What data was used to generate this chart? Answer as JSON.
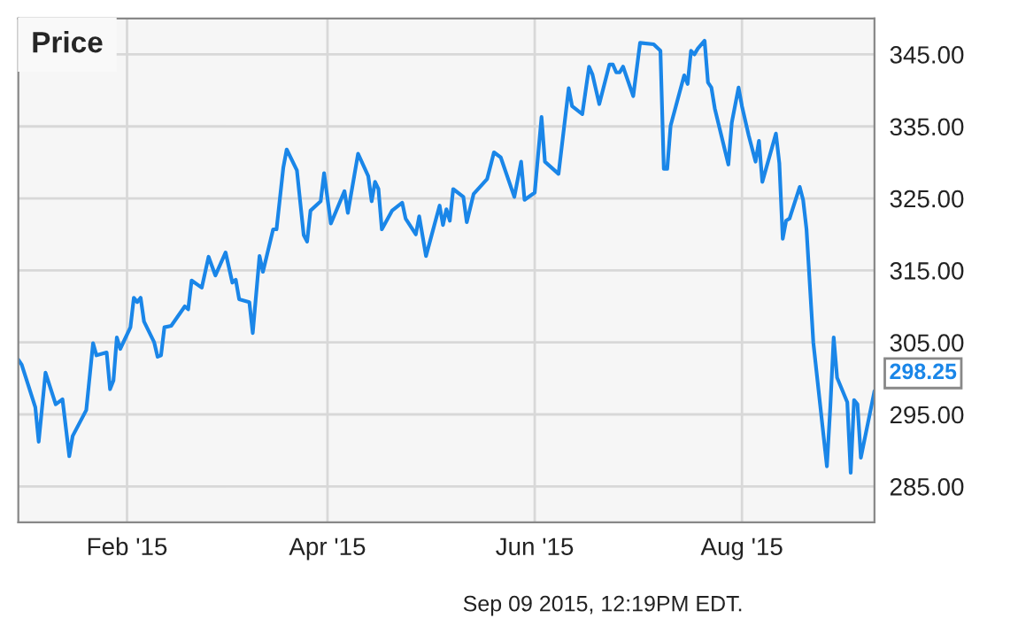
{
  "chart_data": {
    "type": "line",
    "title": "Price",
    "color": "#1a86e8",
    "grid": true,
    "marker": "none",
    "line_style": "solid",
    "x": [
      "2014-12-31",
      "2015-01-01",
      "2015-01-05",
      "2015-01-06",
      "2015-01-08",
      "2015-01-11",
      "2015-01-13",
      "2015-01-15",
      "2015-01-16",
      "2015-01-20",
      "2015-01-22",
      "2015-01-23",
      "2015-01-26",
      "2015-01-27",
      "2015-01-28",
      "2015-01-29",
      "2015-01-30",
      "2015-02-02",
      "2015-02-03",
      "2015-02-04",
      "2015-02-05",
      "2015-02-06",
      "2015-02-09",
      "2015-02-10",
      "2015-02-11",
      "2015-02-12",
      "2015-02-14",
      "2015-02-18",
      "2015-02-19",
      "2015-02-20",
      "2015-02-23",
      "2015-02-25",
      "2015-02-27",
      "2015-03-02",
      "2015-03-04",
      "2015-03-05",
      "2015-03-06",
      "2015-03-09",
      "2015-03-10",
      "2015-03-12",
      "2015-03-13",
      "2015-03-16",
      "2015-03-17",
      "2015-03-19",
      "2015-03-20",
      "2015-03-23",
      "2015-03-25",
      "2015-03-26",
      "2015-03-27",
      "2015-03-30",
      "2015-03-31",
      "2015-04-02",
      "2015-04-06",
      "2015-04-07",
      "2015-04-10",
      "2015-04-13",
      "2015-04-14",
      "2015-04-15",
      "2015-04-16",
      "2015-04-17",
      "2015-04-20",
      "2015-04-23",
      "2015-04-24",
      "2015-04-27",
      "2015-04-28",
      "2015-04-30",
      "2015-05-02",
      "2015-05-04",
      "2015-05-05",
      "2015-05-06",
      "2015-05-07",
      "2015-05-08",
      "2015-05-11",
      "2015-05-12",
      "2015-05-14",
      "2015-05-18",
      "2015-05-20",
      "2015-05-22",
      "2015-05-26",
      "2015-05-28",
      "2015-05-29",
      "2015-06-01",
      "2015-06-03",
      "2015-06-04",
      "2015-06-08",
      "2015-06-11",
      "2015-06-12",
      "2015-06-15",
      "2015-06-17",
      "2015-06-18",
      "2015-06-20",
      "2015-06-23",
      "2015-06-24",
      "2015-06-25",
      "2015-06-26",
      "2015-06-27",
      "2015-06-30",
      "2015-07-02",
      "2015-07-06",
      "2015-07-08",
      "2015-07-09",
      "2015-07-10",
      "2015-07-11",
      "2015-07-15",
      "2015-07-16",
      "2015-07-17",
      "2015-07-18",
      "2015-07-19",
      "2015-07-21",
      "2015-07-22",
      "2015-07-23",
      "2015-07-24",
      "2015-07-28",
      "2015-07-29",
      "2015-07-31",
      "2015-08-01",
      "2015-08-03",
      "2015-08-05",
      "2015-08-06",
      "2015-08-07",
      "2015-08-11",
      "2015-08-12",
      "2015-08-13",
      "2015-08-14",
      "2015-08-15",
      "2015-08-18",
      "2015-08-19",
      "2015-08-20",
      "2015-08-22",
      "2015-08-26",
      "2015-08-27",
      "2015-08-28",
      "2015-08-29",
      "2015-09-01",
      "2015-09-02",
      "2015-09-03",
      "2015-09-04",
      "2015-09-05",
      "2015-09-09"
    ],
    "values": [
      302.6,
      301.9,
      296.0,
      291.2,
      300.8,
      296.4,
      297.1,
      289.2,
      292.0,
      295.6,
      304.9,
      303.2,
      303.6,
      298.5,
      299.7,
      305.7,
      304.1,
      307.1,
      311.2,
      310.6,
      311.2,
      307.9,
      305.0,
      303.0,
      303.2,
      307.1,
      307.3,
      310.0,
      309.6,
      313.6,
      312.6,
      316.9,
      314.3,
      317.5,
      313.3,
      313.7,
      311.0,
      310.6,
      306.3,
      317.0,
      314.8,
      320.7,
      320.7,
      329.3,
      331.8,
      328.9,
      319.9,
      319.0,
      323.3,
      324.6,
      328.5,
      321.5,
      326.0,
      323.0,
      331.2,
      328.1,
      324.6,
      327.3,
      326.3,
      320.7,
      323.3,
      324.4,
      322.2,
      320.0,
      322.5,
      317.0,
      320.5,
      324.0,
      321.3,
      323.5,
      321.9,
      326.3,
      325.2,
      321.7,
      325.6,
      327.7,
      331.4,
      330.7,
      325.2,
      330.1,
      324.8,
      325.8,
      336.3,
      330.1,
      328.4,
      340.3,
      337.8,
      336.7,
      343.3,
      342.2,
      338.1,
      343.6,
      343.6,
      342.5,
      342.5,
      343.3,
      339.2,
      346.6,
      346.4,
      345.5,
      329.1,
      329.1,
      335.1,
      342.1,
      340.9,
      345.5,
      345.0,
      345.8,
      346.9,
      341.1,
      340.4,
      337.5,
      329.7,
      335.5,
      340.4,
      337.8,
      333.7,
      330.1,
      333.0,
      327.3,
      334.0,
      329.9,
      319.4,
      321.9,
      322.2,
      326.6,
      324.8,
      320.7,
      305.0,
      287.8,
      296.0,
      305.7,
      300.1,
      296.7,
      286.9,
      297.0,
      296.4,
      289.0,
      298.25
    ],
    "xlim": [
      "2014-12-31",
      "2015-09-09"
    ],
    "xticks": [
      {
        "value": "2015-02-01",
        "label": "Feb '15"
      },
      {
        "value": "2015-04-01",
        "label": "Apr '15"
      },
      {
        "value": "2015-06-01",
        "label": "Jun '15"
      },
      {
        "value": "2015-08-01",
        "label": "Aug '15"
      }
    ],
    "ylim": [
      280,
      350
    ],
    "yticks": [
      {
        "value": 285,
        "label": "285.00"
      },
      {
        "value": 295,
        "label": "295.00"
      },
      {
        "value": 305,
        "label": "305.00"
      },
      {
        "value": 315,
        "label": "315.00"
      },
      {
        "value": 325,
        "label": "325.00"
      },
      {
        "value": 335,
        "label": "335.00"
      },
      {
        "value": 345,
        "label": "345.00"
      }
    ],
    "annotations": [
      {
        "text": "298.25",
        "x": "2015-09-09",
        "y": 298.25
      },
      "Sep 09 2015, 12:19PM EDT."
    ]
  }
}
